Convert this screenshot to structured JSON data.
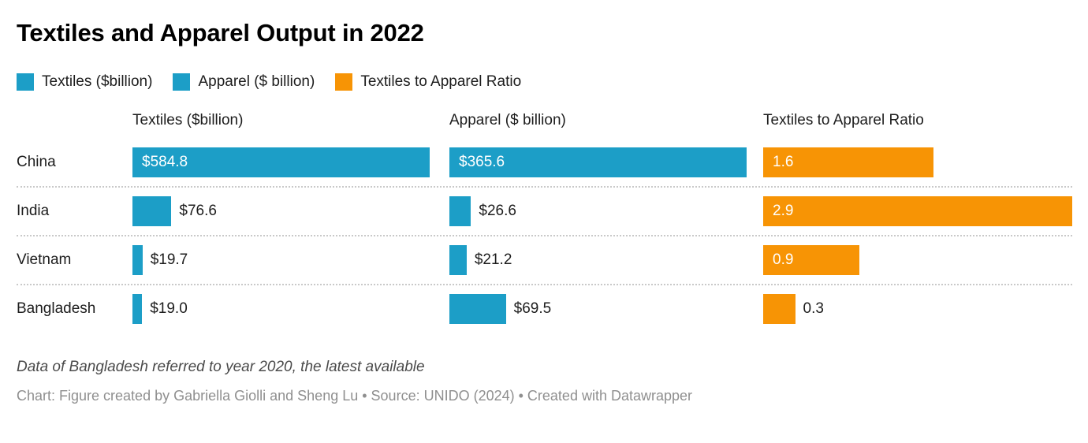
{
  "title": "Textiles and Apparel Output in 2022",
  "colors": {
    "bar_blue": "#1C9EC7",
    "bar_orange": "#F79405",
    "title_text": "#000000",
    "body_text": "#1D1D1D",
    "note_text": "#4A4A4A",
    "byline_text": "#8F8F8F"
  },
  "chart_data": {
    "type": "bar",
    "layout": "split-bars-table",
    "title": "Textiles and Apparel Output in 2022",
    "categories": [
      "China",
      "India",
      "Vietnam",
      "Bangladesh"
    ],
    "series": [
      {
        "name": "Textiles ($billion)",
        "color": "#1C9EC7",
        "values": [
          584.8,
          76.6,
          19.7,
          19.0
        ],
        "labels": [
          "$584.8",
          "$76.6",
          "$19.7",
          "$19.0"
        ],
        "axis_max": 584.8
      },
      {
        "name": "Apparel ($ billion)",
        "color": "#1C9EC7",
        "values": [
          365.6,
          26.6,
          21.2,
          69.5
        ],
        "labels": [
          "$365.6",
          "$26.6",
          "$21.2",
          "$69.5"
        ],
        "axis_max": 365.6
      },
      {
        "name": "Textiles to Apparel Ratio",
        "color": "#F79405",
        "values": [
          1.6,
          2.9,
          0.9,
          0.3
        ],
        "labels": [
          "1.6",
          "2.9",
          "0.9",
          "0.3"
        ],
        "axis_max": 2.9
      }
    ],
    "legend_position": "top",
    "grid": false
  },
  "footer": {
    "note": "Data of Bangladesh referred to year 2020, the latest available",
    "byline": "Chart: Figure created by Gabriella Giolli and Sheng Lu • Source: UNIDO (2024) • Created with Datawrapper"
  }
}
